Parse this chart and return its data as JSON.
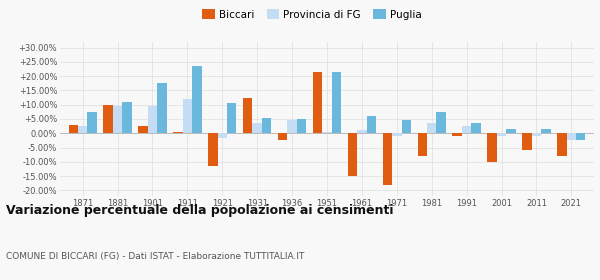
{
  "years": [
    1871,
    1881,
    1901,
    1911,
    1921,
    1931,
    1936,
    1951,
    1961,
    1971,
    1981,
    1991,
    2001,
    2011,
    2021
  ],
  "biccari": [
    3.0,
    10.0,
    2.5,
    0.5,
    -11.5,
    12.5,
    -2.5,
    21.5,
    -15.0,
    -18.0,
    -8.0,
    -1.0,
    -10.0,
    -6.0,
    -8.0
  ],
  "provincia_fg": [
    2.5,
    9.5,
    9.5,
    12.0,
    -1.5,
    3.5,
    4.5,
    0.5,
    1.0,
    -1.0,
    3.5,
    2.5,
    -1.0,
    -1.0,
    -2.5
  ],
  "puglia": [
    7.5,
    11.0,
    17.5,
    23.5,
    10.5,
    5.5,
    5.0,
    21.5,
    6.0,
    4.5,
    7.5,
    3.5,
    1.5,
    1.5,
    -2.5
  ],
  "color_biccari": "#e05c10",
  "color_provincia": "#c5dcf5",
  "color_puglia": "#6ab8dc",
  "title": "Variazione percentuale della popolazione ai censimenti",
  "subtitle": "COMUNE DI BICCARI (FG) - Dati ISTAT - Elaborazione TUTTITALIA.IT",
  "ylim": [
    -22,
    32
  ],
  "ytick_vals": [
    30,
    25,
    20,
    15,
    10,
    5,
    0,
    -5,
    -10,
    -15,
    -20
  ],
  "ytick_labels": [
    "+30.00%",
    "+25.00%",
    "+20.00%",
    "+15.00%",
    "+10.00%",
    "+5.00%",
    "0.00%",
    "-5.00%",
    "-10.00%",
    "-15.00%",
    "-20.00%"
  ],
  "background_color": "#f8f8f8",
  "grid_color": "#dddddd",
  "bar_width": 0.27
}
